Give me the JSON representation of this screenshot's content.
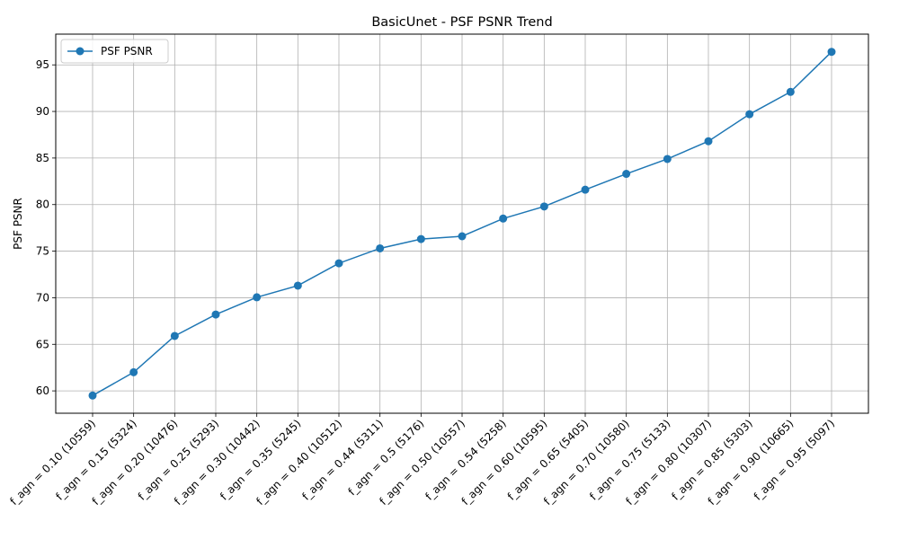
{
  "chart_data": {
    "type": "line",
    "title": "BasicUnet - PSF PSNR Trend",
    "xlabel": "",
    "ylabel": "PSF PSNR",
    "categories": [
      "f_agn = 0.10 (10559)",
      "f_agn = 0.15 (5324)",
      "f_agn = 0.20 (10476)",
      "f_agn = 0.25 (5293)",
      "f_agn = 0.30 (10442)",
      "f_agn = 0.35 (5245)",
      "f_agn = 0.40 (10512)",
      "f_agn = 0.44 (5311)",
      "f_agn = 0.5 (5176)",
      "f_agn = 0.50 (10557)",
      "f_agn = 0.54 (5258)",
      "f_agn = 0.60 (10595)",
      "f_agn = 0.65 (5405)",
      "f_agn = 0.70 (10580)",
      "f_agn = 0.75 (5133)",
      "f_agn = 0.80 (10307)",
      "f_agn = 0.85 (5303)",
      "f_agn = 0.90 (10665)",
      "f_agn = 0.95 (5097)"
    ],
    "series": [
      {
        "name": "PSF PSNR",
        "color": "#1f77b4",
        "marker": "circle",
        "values": [
          59.5,
          62.0,
          65.9,
          68.2,
          70.05,
          71.3,
          73.7,
          75.3,
          76.3,
          76.6,
          78.5,
          79.8,
          81.6,
          83.3,
          84.9,
          86.8,
          89.7,
          92.1,
          96.4
        ]
      }
    ],
    "ylim": [
      57.6,
      98.3
    ],
    "yticks": [
      60,
      65,
      70,
      75,
      80,
      85,
      90,
      95
    ],
    "grid": true,
    "legend_position": "top-left"
  }
}
